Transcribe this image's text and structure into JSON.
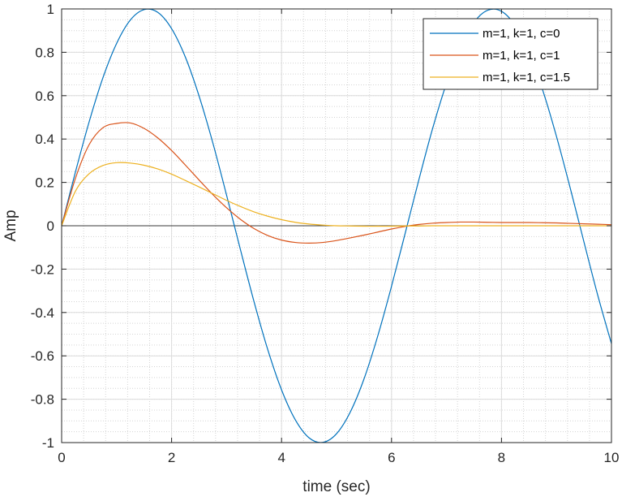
{
  "chart_data": {
    "type": "line",
    "xlabel": "time (sec)",
    "ylabel": "Amp",
    "xlim": [
      0,
      10
    ],
    "ylim": [
      -1,
      1
    ],
    "xticks": [
      0,
      2,
      4,
      6,
      8,
      10
    ],
    "xtick_labels": [
      "0",
      "2",
      "4",
      "6",
      "8",
      "10"
    ],
    "yticks": [
      -1,
      -0.8,
      -0.6,
      -0.4,
      -0.2,
      0,
      0.2,
      0.4,
      0.6,
      0.8,
      1
    ],
    "ytick_labels": [
      "-1",
      "-0.8",
      "-0.6",
      "-0.4",
      "-0.2",
      "0",
      "0.2",
      "0.4",
      "0.6",
      "0.8",
      "1"
    ],
    "grid": true,
    "minor_grid": true,
    "zero_line": true,
    "legend_position": "top-right",
    "series": [
      {
        "name": "m=1, k=1, c=0",
        "color": "#0072bd",
        "x": [
          0,
          0.25,
          0.5,
          0.75,
          1,
          1.25,
          1.5,
          1.75,
          2,
          2.25,
          2.5,
          2.75,
          3,
          3.25,
          3.5,
          3.75,
          4,
          4.25,
          4.5,
          4.75,
          5,
          5.25,
          5.5,
          5.75,
          6,
          6.25,
          6.5,
          6.75,
          7,
          7.25,
          7.5,
          7.75,
          8,
          8.25,
          8.5,
          8.75,
          9,
          9.25,
          9.5,
          9.75,
          10
        ],
        "y": [
          0,
          0.247,
          0.479,
          0.682,
          0.841,
          0.949,
          0.997,
          0.984,
          0.909,
          0.778,
          0.598,
          0.382,
          0.141,
          -0.108,
          -0.351,
          -0.572,
          -0.757,
          -0.895,
          -0.978,
          -0.999,
          -0.959,
          -0.859,
          -0.706,
          -0.508,
          -0.279,
          -0.033,
          0.215,
          0.451,
          0.657,
          0.823,
          0.938,
          0.994,
          0.989,
          0.923,
          0.798,
          0.625,
          0.412,
          0.174,
          -0.075,
          -0.32,
          -0.544
        ]
      },
      {
        "name": "m=1, k=1, c=1",
        "color": "#d95319",
        "x": [
          0,
          0.25,
          0.5,
          0.75,
          1,
          1.25,
          1.5,
          1.75,
          2,
          2.25,
          2.5,
          2.75,
          3,
          3.25,
          3.5,
          3.75,
          4,
          4.25,
          4.5,
          4.75,
          5,
          5.25,
          5.5,
          5.75,
          6,
          6.25,
          6.5,
          6.75,
          7,
          7.25,
          7.5,
          7.75,
          8,
          8.25,
          8.5,
          8.75,
          9,
          9.25,
          9.5,
          9.75,
          10
        ],
        "y": [
          0,
          0.218,
          0.374,
          0.452,
          0.472,
          0.474,
          0.449,
          0.405,
          0.347,
          0.28,
          0.211,
          0.144,
          0.083,
          0.03,
          -0.013,
          -0.045,
          -0.066,
          -0.077,
          -0.08,
          -0.077,
          -0.068,
          -0.056,
          -0.043,
          -0.029,
          -0.015,
          -0.003,
          0.006,
          0.012,
          0.015,
          0.017,
          0.017,
          0.016,
          0.015,
          0.015,
          0.015,
          0.014,
          0.013,
          0.011,
          0.009,
          0.007,
          0.005
        ]
      },
      {
        "name": "m=1, k=1, c=1.5",
        "color": "#edb120",
        "x": [
          0,
          0.25,
          0.5,
          0.75,
          1,
          1.25,
          1.5,
          1.75,
          2,
          2.25,
          2.5,
          2.75,
          3,
          3.25,
          3.5,
          3.75,
          4,
          4.25,
          4.5,
          4.75,
          5,
          5.25,
          5.5,
          5.75,
          6,
          6.25,
          6.5,
          6.75,
          7,
          7.25,
          7.5,
          7.75,
          8,
          8.25,
          8.5,
          8.75,
          9,
          9.25,
          9.5,
          9.75,
          10
        ],
        "y": [
          0,
          0.159,
          0.24,
          0.278,
          0.291,
          0.289,
          0.279,
          0.262,
          0.238,
          0.209,
          0.179,
          0.148,
          0.117,
          0.089,
          0.064,
          0.044,
          0.028,
          0.016,
          0.008,
          0.003,
          0,
          -0.001,
          -0.002,
          -0.002,
          -0.002,
          -0.001,
          -0.001,
          0,
          0,
          0,
          0,
          0,
          0,
          0,
          0,
          0,
          0,
          0,
          0,
          0,
          0
        ]
      }
    ]
  }
}
